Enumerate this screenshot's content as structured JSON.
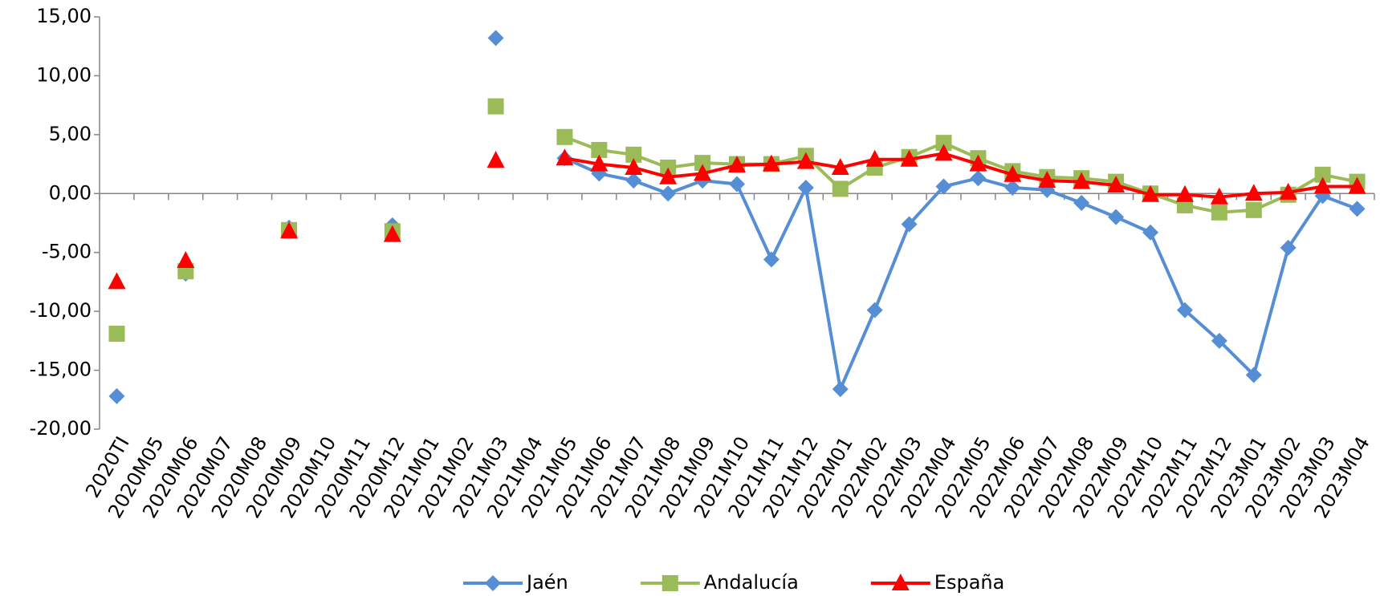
{
  "chart_data": {
    "type": "line",
    "categories": [
      "2020TI",
      "2020M05",
      "2020M06",
      "2020M07",
      "2020M08",
      "2020M09",
      "2020M10",
      "2020M11",
      "2020M12",
      "2021M01",
      "2021M02",
      "2021M03",
      "2021M04",
      "2021M05",
      "2021M06",
      "2021M07",
      "2021M08",
      "2021M09",
      "2021M10",
      "2021M11",
      "2021M12",
      "2022M01",
      "2022M02",
      "2022M03",
      "2022M04",
      "2022M05",
      "2022M06",
      "2022M07",
      "2022M08",
      "2022M09",
      "2022M10",
      "2022M11",
      "2022M12",
      "2023M01",
      "2023M02",
      "2023M03",
      "2023M04"
    ],
    "series": [
      {
        "name": "Jaén",
        "color": "#558ed5",
        "marker": "diamond",
        "values": [
          -17.2,
          null,
          -6.8,
          null,
          null,
          -2.9,
          null,
          null,
          -2.7,
          null,
          null,
          13.2,
          null,
          3.0,
          1.7,
          1.1,
          0.0,
          1.1,
          0.8,
          -5.6,
          0.5,
          -16.6,
          -9.9,
          -2.6,
          0.6,
          1.3,
          0.5,
          0.3,
          -0.8,
          -2.0,
          -3.3,
          -9.9,
          -12.5,
          -15.4,
          -4.6,
          -0.2,
          -1.3
        ]
      },
      {
        "name": "Andalucía",
        "color": "#9bbb59",
        "marker": "square",
        "values": [
          -11.9,
          null,
          -6.6,
          null,
          null,
          -3.1,
          null,
          null,
          -3.2,
          null,
          null,
          7.4,
          null,
          4.8,
          3.7,
          3.3,
          2.2,
          2.6,
          2.5,
          2.5,
          3.2,
          0.4,
          2.2,
          3.1,
          4.3,
          3.0,
          1.9,
          1.4,
          1.3,
          1.0,
          0.0,
          -1.0,
          -1.6,
          -1.4,
          -0.1,
          1.6,
          1.0
        ]
      },
      {
        "name": "España",
        "color": "#ff0000",
        "marker": "triangle",
        "values": [
          -7.5,
          null,
          -5.7,
          null,
          null,
          -3.2,
          null,
          null,
          -3.5,
          null,
          null,
          2.8,
          null,
          3.0,
          2.5,
          2.2,
          1.4,
          1.7,
          2.4,
          2.5,
          2.7,
          2.2,
          2.9,
          2.9,
          3.4,
          2.5,
          1.6,
          1.1,
          1.0,
          0.7,
          -0.1,
          -0.1,
          -0.3,
          0.0,
          0.1,
          0.6,
          0.6
        ]
      }
    ],
    "ylim": [
      -20,
      15
    ],
    "yticks": [
      {
        "value": -20,
        "label": "-20,00"
      },
      {
        "value": -15,
        "label": "-15,00"
      },
      {
        "value": -10,
        "label": "-10,00"
      },
      {
        "value": -5,
        "label": "-5,00"
      },
      {
        "value": 0,
        "label": "0,00"
      },
      {
        "value": 5,
        "label": "5,00"
      },
      {
        "value": 10,
        "label": "10,00"
      },
      {
        "value": 15,
        "label": "15,00"
      }
    ],
    "grid": false,
    "legend": "bottom"
  }
}
